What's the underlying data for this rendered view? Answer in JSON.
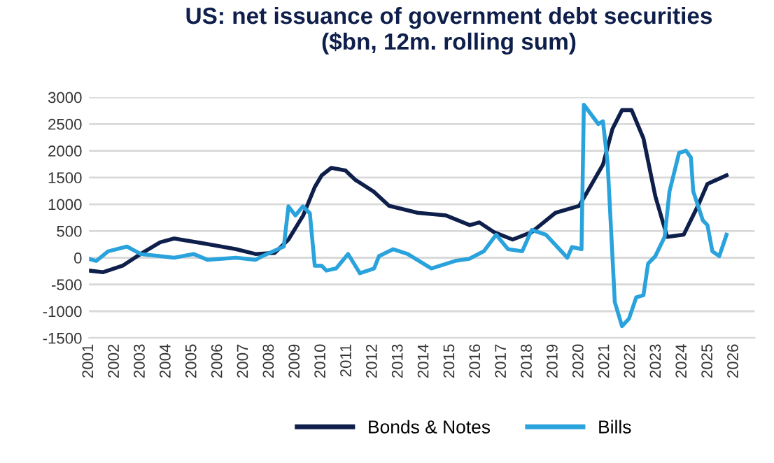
{
  "chart_data": {
    "type": "line",
    "title": "US: net issuance of government debt securities\n($bn, 12m. rolling sum)",
    "xlim": [
      2001,
      2026.8
    ],
    "xticks": [
      {
        "value": 2001,
        "label": "2001"
      },
      {
        "value": 2002,
        "label": "2002"
      },
      {
        "value": 2003,
        "label": "2003"
      },
      {
        "value": 2004,
        "label": "2004"
      },
      {
        "value": 2005,
        "label": "2005"
      },
      {
        "value": 2006,
        "label": "2006"
      },
      {
        "value": 2007,
        "label": "2007"
      },
      {
        "value": 2008,
        "label": "2008"
      },
      {
        "value": 2009,
        "label": "2009"
      },
      {
        "value": 2010,
        "label": "2010"
      },
      {
        "value": 2011,
        "label": "2011"
      },
      {
        "value": 2012,
        "label": "2012"
      },
      {
        "value": 2013,
        "label": "2013"
      },
      {
        "value": 2014,
        "label": "2014"
      },
      {
        "value": 2015,
        "label": "2015"
      },
      {
        "value": 2016,
        "label": "2016"
      },
      {
        "value": 2017,
        "label": "2017"
      },
      {
        "value": 2018,
        "label": "2018"
      },
      {
        "value": 2019,
        "label": "2019"
      },
      {
        "value": 2020,
        "label": "2020"
      },
      {
        "value": 2021,
        "label": "2021"
      },
      {
        "value": 2022,
        "label": "2022"
      },
      {
        "value": 2023,
        "label": "2023"
      },
      {
        "value": 2024,
        "label": "2024"
      },
      {
        "value": 2025,
        "label": "2025"
      },
      {
        "value": 2026,
        "label": "2026"
      }
    ],
    "ylim": [
      -1500,
      3000
    ],
    "yticks": [
      -1500,
      -1000,
      -500,
      0,
      500,
      1000,
      1500,
      2000,
      2500,
      3000
    ],
    "grid": "y",
    "legend": "bottom",
    "marker": "none",
    "line_style": "solid",
    "series": [
      {
        "name": "Bonds & Notes",
        "color": "#0f1f4b",
        "x": [
          2001,
          2001.55,
          2002.3,
          2003.0,
          2003.76,
          2004.3,
          2005.4,
          2006.7,
          2007.45,
          2008.2,
          2008.73,
          2009.3,
          2009.75,
          2010.02,
          2010.39,
          2010.94,
          2011.31,
          2012.05,
          2012.63,
          2013.74,
          2014.84,
          2015.76,
          2016.13,
          2016.69,
          2017.42,
          2018.16,
          2019.08,
          2020.0,
          2020.92,
          2021.29,
          2021.66,
          2022.03,
          2022.49,
          2022.95,
          2023.41,
          2024.05,
          2024.6,
          2024.97,
          2025.71
        ],
        "values": [
          -240,
          -270,
          -150,
          70,
          290,
          360,
          270,
          160,
          70,
          90,
          340,
          790,
          1320,
          1540,
          1680,
          1630,
          1460,
          1230,
          970,
          840,
          790,
          610,
          660,
          480,
          340,
          480,
          840,
          970,
          1740,
          2410,
          2760,
          2760,
          2230,
          1150,
          390,
          430,
          970,
          1380,
          1540
        ]
      },
      {
        "name": "Bills",
        "color": "#2aa3dc",
        "x": [
          2001,
          2001.28,
          2001.74,
          2002.47,
          2003.0,
          2003.76,
          2004.3,
          2005.05,
          2005.6,
          2006.7,
          2007.45,
          2007.72,
          2008.55,
          2008.73,
          2009.0,
          2009.29,
          2009.56,
          2009.75,
          2010.02,
          2010.2,
          2010.58,
          2011.04,
          2011.5,
          2012.05,
          2012.24,
          2012.79,
          2013.35,
          2014.27,
          2015.19,
          2015.74,
          2016.3,
          2016.78,
          2017.24,
          2017.79,
          2018.16,
          2018.71,
          2019.54,
          2019.72,
          2020.09,
          2020.18,
          2020.74,
          2020.92,
          2021.1,
          2021.38,
          2021.66,
          2021.93,
          2022.21,
          2022.49,
          2022.67,
          2022.95,
          2023.31,
          2023.5,
          2023.87,
          2024.14,
          2024.33,
          2024.42,
          2024.79,
          2024.97,
          2025.16,
          2025.43,
          2025.71
        ],
        "values": [
          -20,
          -60,
          120,
          210,
          70,
          30,
          0,
          70,
          -40,
          0,
          -40,
          30,
          210,
          960,
          790,
          960,
          830,
          -150,
          -150,
          -240,
          -200,
          70,
          -290,
          -200,
          30,
          160,
          70,
          -200,
          -60,
          -20,
          120,
          430,
          160,
          120,
          520,
          430,
          0,
          200,
          160,
          2860,
          2500,
          2550,
          1780,
          -830,
          -1280,
          -1140,
          -740,
          -700,
          -110,
          30,
          390,
          1240,
          1960,
          2000,
          1870,
          1240,
          700,
          610,
          120,
          30,
          430
        ]
      }
    ]
  }
}
